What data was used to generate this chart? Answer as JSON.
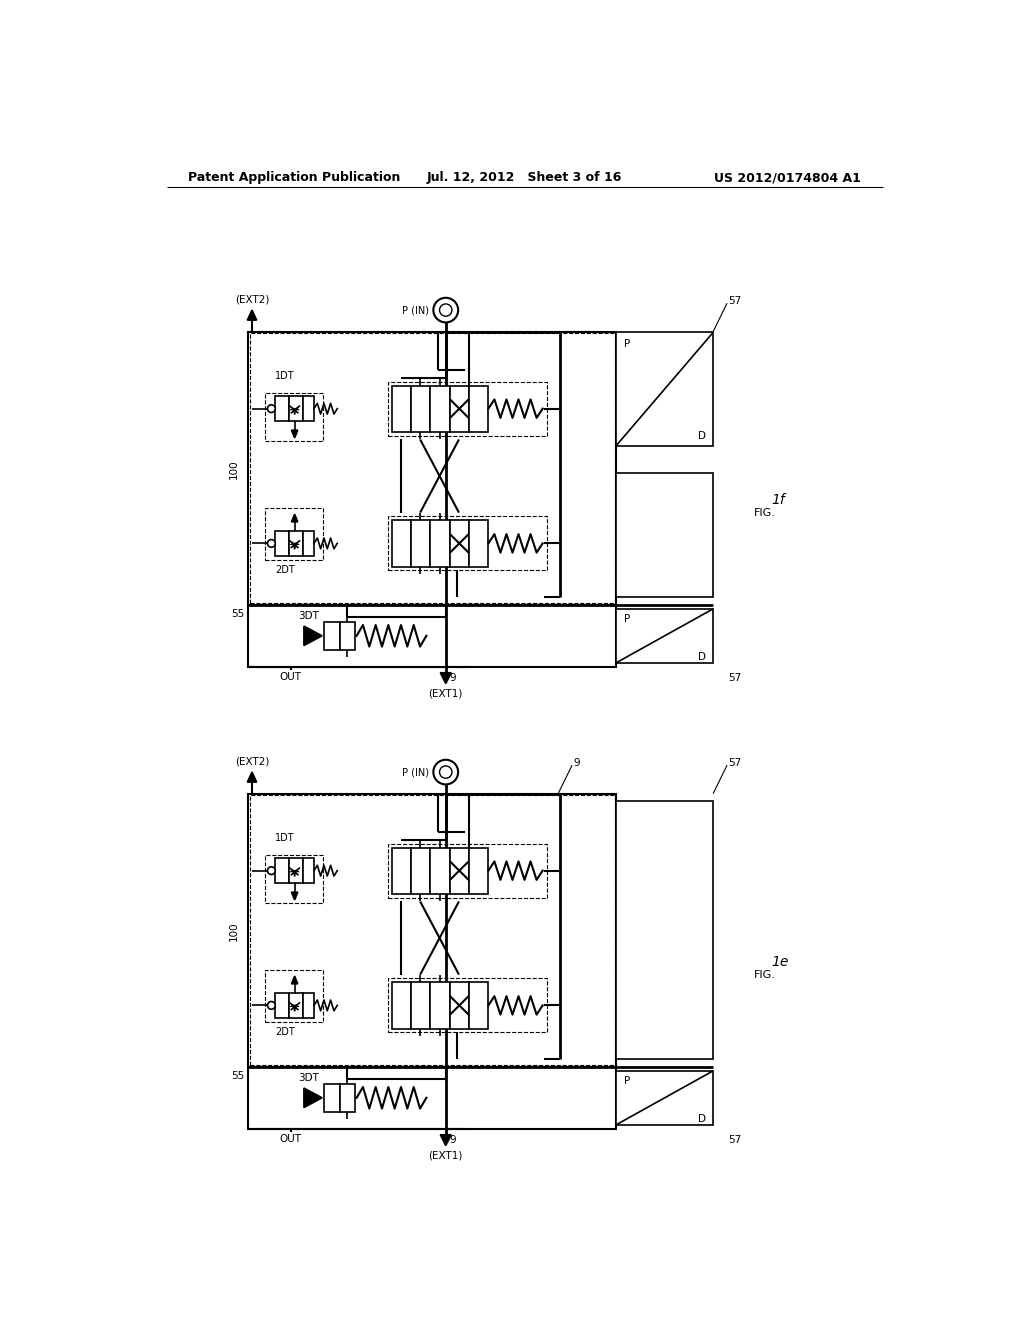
{
  "header_left": "Patent Application Publication",
  "header_mid": "Jul. 12, 2012   Sheet 3 of 16",
  "header_right": "US 2012/0174804 A1",
  "bg": "#ffffff",
  "fig1_label": "1f",
  "fig2_label": "1e",
  "fig1_prefix": "FIG.",
  "fig2_prefix": "FIG."
}
